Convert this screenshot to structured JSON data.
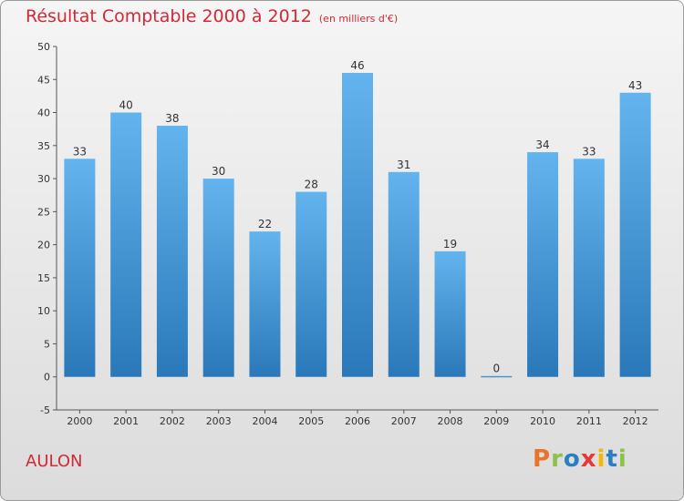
{
  "header": {
    "title": "Résultat Comptable 2000 à 2012",
    "subtitle": "(en milliers d'€)"
  },
  "footer": {
    "commune": "AULON",
    "logo": "Proxiti"
  },
  "colors": {
    "bar_light": "#63b4ee",
    "bar_dark": "#2a78b9",
    "title": "#d02a36"
  },
  "chart_data": {
    "type": "bar",
    "title": "Résultat Comptable 2000 à 2012",
    "subtitle": "(en milliers d'€)",
    "categories": [
      "2000",
      "2001",
      "2002",
      "2003",
      "2004",
      "2005",
      "2006",
      "2007",
      "2008",
      "2009",
      "2010",
      "2011",
      "2012"
    ],
    "values": [
      33,
      40,
      38,
      30,
      22,
      28,
      46,
      31,
      19,
      0,
      34,
      33,
      43
    ],
    "data_labels": [
      "33",
      "40",
      "38",
      "30",
      "22",
      "28",
      "46",
      "31",
      "19",
      "0",
      "34",
      "33",
      "43"
    ],
    "yticks": [
      -5,
      0,
      5,
      10,
      15,
      20,
      25,
      30,
      35,
      40,
      45,
      50
    ],
    "ylim": [
      -5,
      50
    ],
    "xlabel": "",
    "ylabel": "",
    "grid": false,
    "legend": "none"
  }
}
